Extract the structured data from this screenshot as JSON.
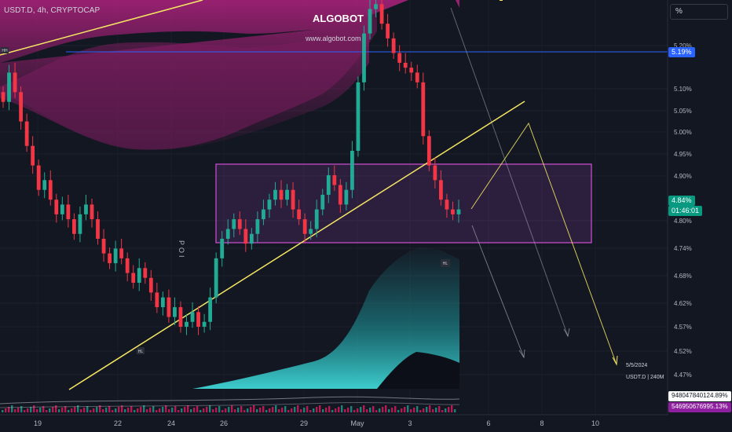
{
  "header": {
    "symbol_line": "USDT.D, 4h, CRYPTOCAP",
    "brand": "ALGOBOT",
    "brand_url": "www.algobot.com",
    "scale_button": "%"
  },
  "notes": {
    "date": "5/5/2024",
    "volume": "USDT.D | 240M"
  },
  "price_tags": {
    "level_line": "5.19%",
    "last_price": "4.84%",
    "countdown": "01:46:01",
    "volume_top": "948047840124.89%",
    "volume_bottom": "546950676995.13%"
  },
  "chart_data": {
    "type": "candlestick",
    "y_unit": "%",
    "ylim": [
      4.42,
      5.26
    ],
    "x_ticks": [
      "19",
      "22",
      "24",
      "26",
      "29",
      "May",
      "3",
      "6",
      "8",
      "10"
    ],
    "y_ticks": [
      "5.20%",
      "5.10%",
      "5.05%",
      "5.00%",
      "4.95%",
      "4.90%",
      "4.80%",
      "4.74%",
      "4.68%",
      "4.62%",
      "4.57%",
      "4.52%",
      "4.47%"
    ],
    "horizontal_level": 5.19,
    "zone": {
      "top": 4.93,
      "bottom": 4.77,
      "label": ""
    },
    "annotations": [
      "POI",
      "HH",
      "HL",
      "HL"
    ],
    "close_series": [
      5.06,
      5.12,
      5.08,
      5.02,
      4.97,
      4.93,
      4.88,
      4.9,
      4.86,
      4.83,
      4.85,
      4.82,
      4.79,
      4.83,
      4.85,
      4.82,
      4.78,
      4.75,
      4.73,
      4.76,
      4.74,
      4.71,
      4.69,
      4.72,
      4.7,
      4.67,
      4.64,
      4.66,
      4.62,
      4.64,
      4.6,
      4.61,
      4.63,
      4.6,
      4.61,
      4.66,
      4.74,
      4.78,
      4.8,
      4.82,
      4.8,
      4.77,
      4.79,
      4.82,
      4.84,
      4.86,
      4.88,
      4.86,
      4.88,
      4.84,
      4.82,
      4.79,
      4.8,
      4.84,
      4.87,
      4.91,
      4.89,
      4.85,
      4.88,
      4.96,
      5.1,
      5.2,
      5.25,
      5.26,
      5.22,
      5.19,
      5.16,
      5.14,
      5.13,
      5.12,
      5.1,
      4.99,
      4.93,
      4.9,
      4.86,
      4.84,
      4.83,
      4.84
    ]
  }
}
